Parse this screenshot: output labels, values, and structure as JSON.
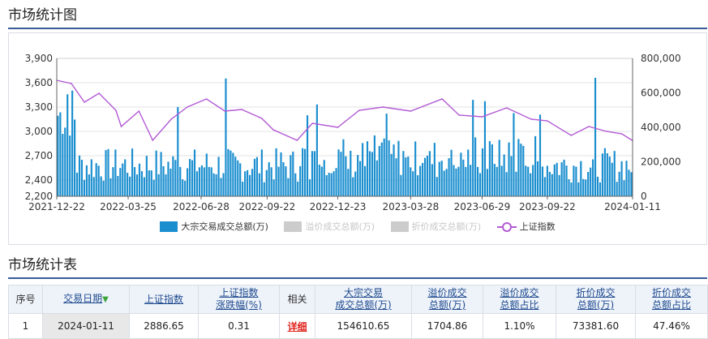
{
  "headings": {
    "chart": "市场统计图",
    "table": "市场统计表"
  },
  "chart_data": {
    "type": "bar+line",
    "x_ticks": [
      "2021-12-22",
      "2022-03-25",
      "2022-06-28",
      "2022-09-22",
      "2022-12-23",
      "2023-03-28",
      "2023-06-29",
      "2023-09-22",
      "2024-01-11"
    ],
    "left_axis": {
      "ticks": [
        "3,900",
        "3,600",
        "3,300",
        "3,000",
        "2,700",
        "2,400",
        "2,200"
      ],
      "range": [
        2200,
        3900
      ]
    },
    "right_axis": {
      "ticks": [
        "800,000",
        "600,000",
        "400,000",
        "200,000",
        "0"
      ],
      "range": [
        0,
        800000
      ]
    },
    "index_series": {
      "name": "上证指数",
      "points": [
        [
          "2021-12-22",
          3630
        ],
        [
          "2022-01-10",
          3590
        ],
        [
          "2022-01-27",
          3360
        ],
        [
          "2022-02-15",
          3470
        ],
        [
          "2022-03-09",
          3260
        ],
        [
          "2022-03-16",
          3060
        ],
        [
          "2022-04-08",
          3250
        ],
        [
          "2022-04-26",
          2890
        ],
        [
          "2022-05-20",
          3150
        ],
        [
          "2022-06-10",
          3300
        ],
        [
          "2022-07-05",
          3400
        ],
        [
          "2022-07-29",
          3250
        ],
        [
          "2022-08-20",
          3270
        ],
        [
          "2022-09-15",
          3160
        ],
        [
          "2022-09-30",
          3020
        ],
        [
          "2022-10-31",
          2890
        ],
        [
          "2022-11-20",
          3100
        ],
        [
          "2022-12-23",
          3050
        ],
        [
          "2023-01-20",
          3260
        ],
        [
          "2023-02-20",
          3300
        ],
        [
          "2023-03-28",
          3250
        ],
        [
          "2023-05-08",
          3400
        ],
        [
          "2023-05-30",
          3200
        ],
        [
          "2023-06-29",
          3180
        ],
        [
          "2023-07-31",
          3290
        ],
        [
          "2023-09-01",
          3150
        ],
        [
          "2023-09-22",
          3130
        ],
        [
          "2023-10-23",
          2950
        ],
        [
          "2023-11-15",
          3060
        ],
        [
          "2023-12-08",
          3000
        ],
        [
          "2023-12-28",
          2970
        ],
        [
          "2024-01-11",
          2886
        ]
      ]
    },
    "legend": [
      {
        "name": "大宗交易成交总额(万)",
        "color": "#1a8ecf",
        "active": true
      },
      {
        "name": "溢价成交总额(万)",
        "color": "#cccccc",
        "active": false
      },
      {
        "name": "折价成交总额(万)",
        "color": "#cccccc",
        "active": false
      },
      {
        "name": "上证指数",
        "color": "#b25ad4",
        "active": true
      }
    ],
    "colors": {
      "bars": "#1a8ecf",
      "line": "#b25ad4",
      "grid": "#e3e3e3",
      "axis": "#666666"
    }
  },
  "table": {
    "headers": {
      "seq": "序号",
      "date": "交易日期",
      "index": "上证指数",
      "change_l1": "上证指数",
      "change_l2": "涨跌幅(%)",
      "related": "相关",
      "total_l1": "大宗交易",
      "total_l2": "成交总额(万)",
      "prem_l1": "溢价成交",
      "prem_l2": "总额(万)",
      "premr_l1": "溢价成交",
      "premr_l2": "总额占比",
      "disc_l1": "折价成交",
      "disc_l2": "总额(万)",
      "discr_l1": "折价成交",
      "discr_l2": "总额占比"
    },
    "rows": [
      {
        "seq": "1",
        "date": "2024-01-11",
        "index": "2886.65",
        "change": "0.31",
        "related": "详细",
        "total": "154610.65",
        "premium": "1704.86",
        "premium_ratio": "1.10%",
        "discount": "73381.60",
        "discount_ratio": "47.46%"
      }
    ]
  }
}
